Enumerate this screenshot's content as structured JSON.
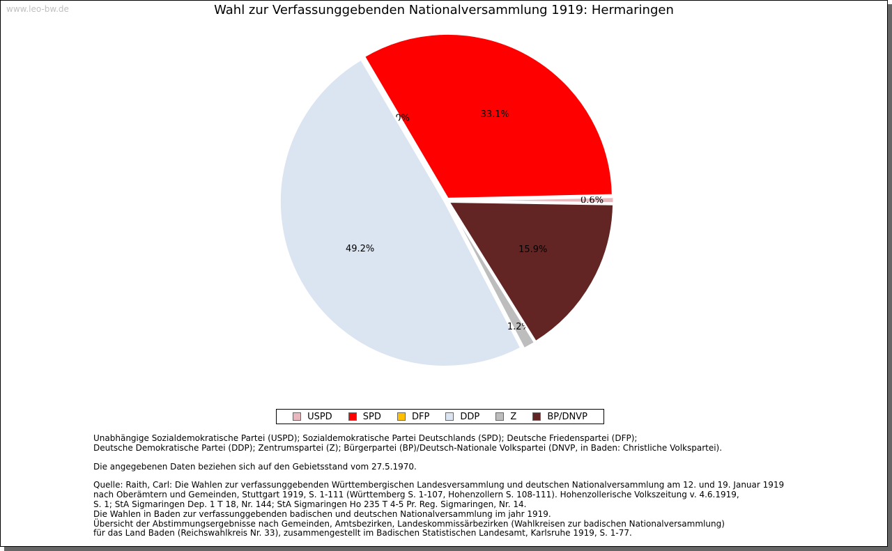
{
  "watermark": "www.leo-bw.de",
  "chart_data": {
    "type": "pie",
    "title": "Wahl zur Verfassunggebenden Nationalversammlung 1919: Hermaringen",
    "slices": [
      {
        "name": "USPD",
        "value": 0.6,
        "label": "0.6%",
        "color": "#e8b8be"
      },
      {
        "name": "SPD",
        "value": 33.1,
        "label": "33.1%",
        "color": "#ff0000"
      },
      {
        "name": "DFP",
        "value": 0.0,
        "label": "0.0%",
        "color": "#ffc000"
      },
      {
        "name": "DDP",
        "value": 49.2,
        "label": "49.2%",
        "color": "#dbe4f1"
      },
      {
        "name": "Z",
        "value": 1.2,
        "label": "1.2%",
        "color": "#bdbdbd"
      },
      {
        "name": "BP/DNVP",
        "value": 15.9,
        "label": "15.9%",
        "color": "#632424"
      }
    ],
    "legend": [
      "USPD",
      "SPD",
      "DFP",
      "DDP",
      "Z",
      "BP/DNVP"
    ]
  },
  "notes": {
    "parties": [
      "Unabhängige Sozialdemokratische Partei (USPD); Sozialdemokratische Partei Deutschlands (SPD); Deutsche Friedenspartei (DFP);",
      "Deutsche Demokratische Partei (DDP); Zentrumspartei (Z); Bürgerpartei (BP)/Deutsch-Nationale Volkspartei (DNVP, in Baden: Christliche Volkspartei)."
    ],
    "territory": "Die angegebenen Daten beziehen sich auf den Gebietsstand vom 27.5.1970.",
    "source": [
      "Quelle: Raith, Carl: Die Wahlen zur verfassunggebenden Württembergischen Landesversammlung und deutschen Nationalversammlung am 12. und 19. Januar 1919",
      "nach Oberämtern und Gemeinden, Stuttgart 1919, S. 1-111 (Württemberg S. 1-107, Hohenzollern S. 108-111). Hohenzollerische Volkszeitung v. 4.6.1919,",
      "S. 1; StA Sigmaringen Dep. 1 T 18, Nr. 144; StA Sigmaringen Ho 235 T 4-5 Pr. Reg. Sigmaringen, Nr. 14.",
      "Die Wahlen in Baden zur verfassunggebenden badischen und deutschen Nationalversammlung im jahr 1919.",
      "Übersicht der Abstimmungsergebnisse nach Gemeinden, Amtsbezirken, Landeskommissärbezirken (Wahlkreisen zur badischen Nationalversammlung)",
      "für das Land Baden (Reichswahlkreis Nr. 33), zusammengestellt im Badischen Statistischen Landesamt, Karlsruhe 1919, S. 1-77."
    ]
  }
}
